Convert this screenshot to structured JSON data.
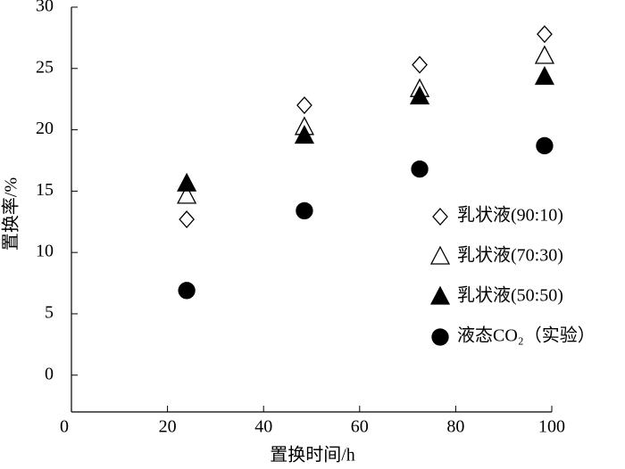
{
  "chart_data": {
    "type": "scatter",
    "x_label": "置换时间/h",
    "y_label": "置换率/%",
    "xlim": [
      0,
      100
    ],
    "xticks": [
      0,
      20,
      40,
      60,
      80,
      100
    ],
    "ylim": [
      -3,
      30
    ],
    "yticks": [
      0,
      5,
      10,
      15,
      20,
      25,
      30
    ],
    "legend": "right",
    "series": [
      {
        "name": "乳状液(90:10)",
        "color": "#000000",
        "marker": "diamond",
        "filled": false,
        "x": [
          24,
          48.5,
          72.5,
          98.5
        ],
        "values": [
          12.7,
          22,
          25.3,
          27.8
        ]
      },
      {
        "name": "乳状液(70:30)",
        "color": "#000000",
        "marker": "triangle",
        "filled": false,
        "x": [
          24,
          48.5,
          72.5,
          98.5
        ],
        "values": [
          14.6,
          20.2,
          23.3,
          26
        ]
      },
      {
        "name": "乳状液(50:50)",
        "color": "#000000",
        "marker": "triangle",
        "filled": true,
        "x": [
          24,
          48.5,
          72.5,
          98.5
        ],
        "values": [
          15.6,
          19.5,
          22.7,
          24.3
        ]
      },
      {
        "name": "液态CO₂（实验）",
        "color": "#000000",
        "marker": "circle",
        "filled": true,
        "x": [
          24,
          48.5,
          72.5,
          98.5
        ],
        "values": [
          6.9,
          13.4,
          16.8,
          18.7
        ]
      }
    ]
  }
}
